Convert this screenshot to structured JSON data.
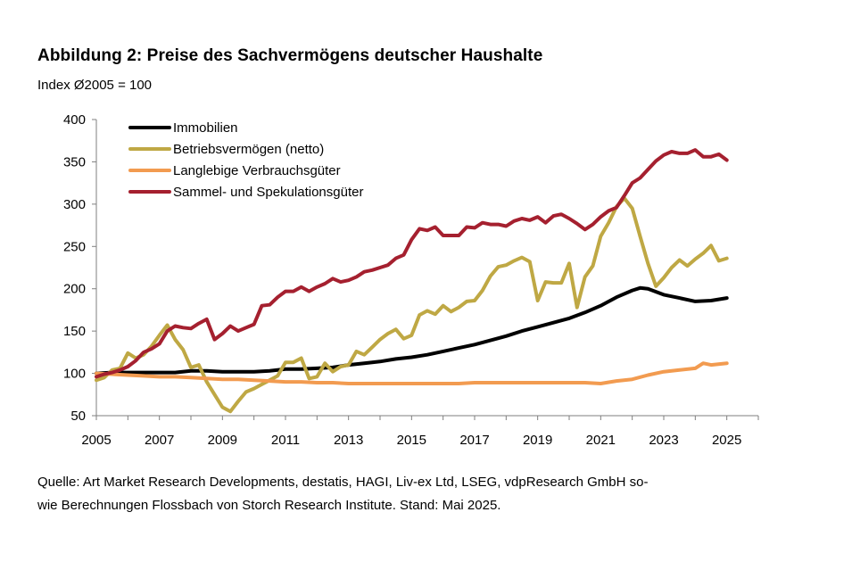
{
  "header": {
    "title": "Abbildung 2: Preise des Sachvermögens deutscher Haushalte",
    "subtitle": "Index Ø2005 = 100"
  },
  "footer": {
    "source_line1": "Quelle: Art Market Research Developments, destatis, HAGI, Liv-ex Ltd, LSEG, vdpResearch GmbH so-",
    "source_line2": "wie Berechnungen Flossbach von Storch Research Institute. Stand: Mai 2025."
  },
  "chart_data": {
    "type": "line",
    "title": "Abbildung 2: Preise des Sachvermögens deutscher Haushalte",
    "ylabel": "Index Ø2005 = 100",
    "xlabel": "",
    "xlim": [
      2005,
      2026
    ],
    "ylim": [
      50,
      400
    ],
    "xticks": [
      2005,
      2007,
      2009,
      2011,
      2013,
      2015,
      2017,
      2019,
      2021,
      2023,
      2025
    ],
    "yticks": [
      50,
      100,
      150,
      200,
      250,
      300,
      350,
      400
    ],
    "legend_position": "top-left",
    "grid": false,
    "series": [
      {
        "name": "Immobilien",
        "color": "#000000",
        "x": [
          2005,
          2005.5,
          2006,
          2006.5,
          2007,
          2007.5,
          2008,
          2008.5,
          2009,
          2009.5,
          2010,
          2010.5,
          2011,
          2011.5,
          2012,
          2012.5,
          2013,
          2013.5,
          2014,
          2014.5,
          2015,
          2015.5,
          2016,
          2016.5,
          2017,
          2017.5,
          2018,
          2018.5,
          2019,
          2019.5,
          2020,
          2020.5,
          2021,
          2021.5,
          2022,
          2022.25,
          2022.5,
          2023,
          2023.5,
          2024,
          2024.5,
          2025
        ],
        "values": [
          100,
          101,
          101,
          101,
          101,
          101,
          103,
          103,
          102,
          102,
          102,
          103,
          105,
          105,
          106,
          107,
          110,
          112,
          114,
          117,
          119,
          122,
          126,
          130,
          134,
          139,
          144,
          150,
          155,
          160,
          165,
          172,
          180,
          190,
          198,
          201,
          200,
          193,
          189,
          185,
          186,
          189
        ]
      },
      {
        "name": "Betriebsvermögen (netto)",
        "color": "#BFA844",
        "x": [
          2005,
          2005.25,
          2005.5,
          2005.75,
          2006,
          2006.25,
          2006.5,
          2006.75,
          2007,
          2007.25,
          2007.5,
          2007.75,
          2008,
          2008.25,
          2008.5,
          2008.75,
          2009,
          2009.25,
          2009.5,
          2009.75,
          2010,
          2010.25,
          2010.5,
          2010.75,
          2011,
          2011.25,
          2011.5,
          2011.75,
          2012,
          2012.25,
          2012.5,
          2012.75,
          2013,
          2013.25,
          2013.5,
          2013.75,
          2014,
          2014.25,
          2014.5,
          2014.75,
          2015,
          2015.25,
          2015.5,
          2015.75,
          2016,
          2016.25,
          2016.5,
          2016.75,
          2017,
          2017.25,
          2017.5,
          2017.75,
          2018,
          2018.25,
          2018.5,
          2018.75,
          2019,
          2019.25,
          2019.5,
          2019.75,
          2020,
          2020.25,
          2020.5,
          2020.75,
          2021,
          2021.25,
          2021.5,
          2021.75,
          2022,
          2022.25,
          2022.5,
          2022.75,
          2023,
          2023.25,
          2023.5,
          2023.75,
          2024,
          2024.25,
          2024.5,
          2024.75,
          2025
        ],
        "values": [
          92,
          95,
          104,
          106,
          124,
          118,
          122,
          132,
          145,
          157,
          140,
          128,
          107,
          110,
          90,
          75,
          60,
          55,
          67,
          78,
          82,
          87,
          92,
          97,
          113,
          113,
          118,
          94,
          96,
          112,
          102,
          108,
          110,
          126,
          122,
          131,
          140,
          147,
          152,
          141,
          145,
          169,
          174,
          170,
          180,
          173,
          178,
          185,
          186,
          198,
          215,
          226,
          228,
          233,
          237,
          232,
          186,
          208,
          207,
          207,
          230,
          178,
          214,
          227,
          262,
          278,
          297,
          307,
          295,
          262,
          230,
          203,
          213,
          225,
          234,
          227,
          235,
          242,
          251,
          233,
          236
        ]
      },
      {
        "name": "Langlebige Verbrauchsgüter",
        "color": "#F29B50",
        "x": [
          2005,
          2005.5,
          2006,
          2006.5,
          2007,
          2007.5,
          2008,
          2008.5,
          2009,
          2009.5,
          2010,
          2010.5,
          2011,
          2011.5,
          2012,
          2012.5,
          2013,
          2013.5,
          2014,
          2014.5,
          2015,
          2015.5,
          2016,
          2016.5,
          2017,
          2017.5,
          2018,
          2018.5,
          2019,
          2019.5,
          2020,
          2020.5,
          2021,
          2021.5,
          2022,
          2022.5,
          2023,
          2023.5,
          2024,
          2024.25,
          2024.5,
          2025
        ],
        "values": [
          100,
          99,
          98,
          97,
          96,
          96,
          95,
          94,
          93,
          93,
          92,
          91,
          90,
          90,
          89,
          89,
          88,
          88,
          88,
          88,
          88,
          88,
          88,
          88,
          89,
          89,
          89,
          89,
          89,
          89,
          89,
          89,
          88,
          91,
          93,
          98,
          102,
          104,
          106,
          112,
          110,
          112
        ]
      },
      {
        "name": "Sammel- und Spekulationsgüter",
        "color": "#A5202F",
        "x": [
          2005,
          2005.25,
          2005.5,
          2005.75,
          2006,
          2006.25,
          2006.5,
          2006.75,
          2007,
          2007.25,
          2007.5,
          2007.75,
          2008,
          2008.25,
          2008.5,
          2008.75,
          2009,
          2009.25,
          2009.5,
          2009.75,
          2010,
          2010.25,
          2010.5,
          2010.75,
          2011,
          2011.25,
          2011.5,
          2011.75,
          2012,
          2012.25,
          2012.5,
          2012.75,
          2013,
          2013.25,
          2013.5,
          2013.75,
          2014,
          2014.25,
          2014.5,
          2014.75,
          2015,
          2015.25,
          2015.5,
          2015.75,
          2016,
          2016.25,
          2016.5,
          2016.75,
          2017,
          2017.25,
          2017.5,
          2017.75,
          2018,
          2018.25,
          2018.5,
          2018.75,
          2019,
          2019.25,
          2019.5,
          2019.75,
          2020,
          2020.25,
          2020.5,
          2020.75,
          2021,
          2021.25,
          2021.5,
          2021.75,
          2022,
          2022.25,
          2022.5,
          2022.75,
          2023,
          2023.25,
          2023.5,
          2023.75,
          2024,
          2024.25,
          2024.5,
          2024.75,
          2025
        ],
        "values": [
          96,
          99,
          101,
          104,
          108,
          115,
          125,
          129,
          135,
          150,
          156,
          154,
          153,
          159,
          164,
          140,
          147,
          156,
          150,
          154,
          158,
          180,
          181,
          190,
          197,
          197,
          202,
          197,
          202,
          206,
          212,
          208,
          210,
          214,
          220,
          222,
          225,
          228,
          236,
          240,
          258,
          271,
          269,
          273,
          263,
          263,
          263,
          273,
          272,
          278,
          276,
          276,
          274,
          280,
          283,
          281,
          285,
          278,
          286,
          288,
          283,
          277,
          270,
          276,
          285,
          292,
          296,
          310,
          325,
          331,
          341,
          351,
          358,
          362,
          360,
          360,
          364,
          356,
          356,
          359,
          352
        ]
      }
    ]
  }
}
